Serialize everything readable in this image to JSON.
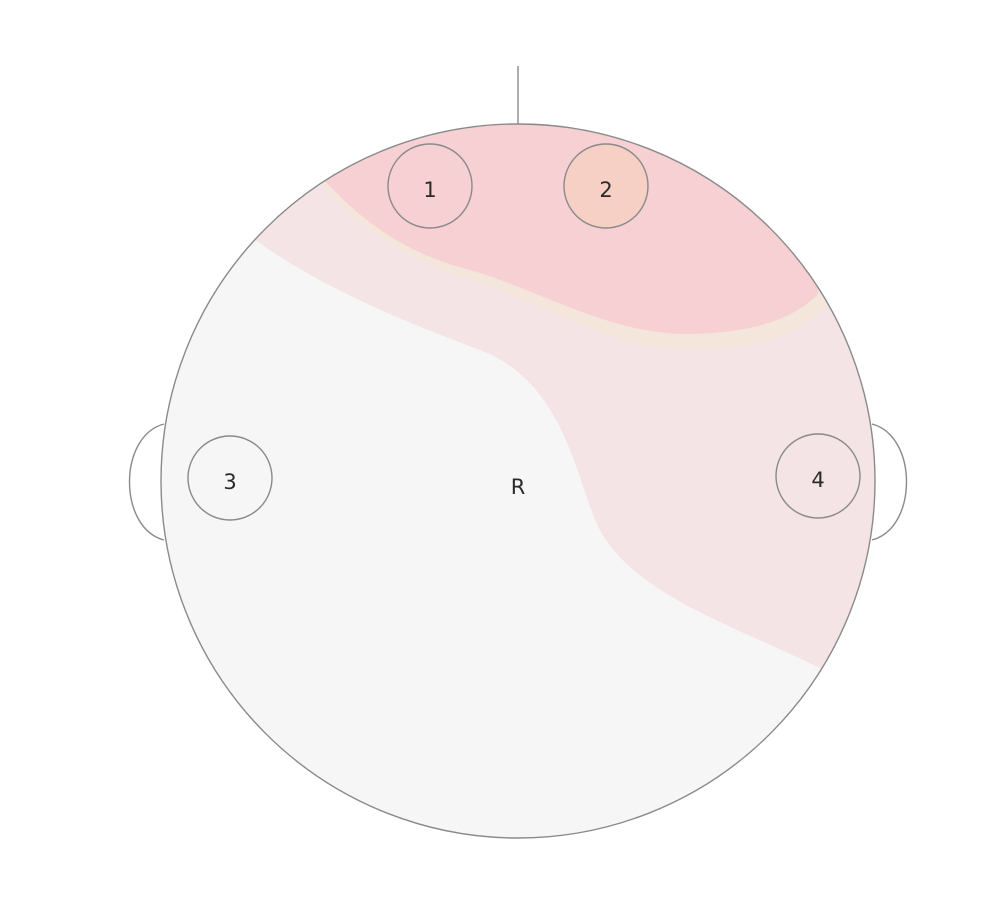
{
  "figure": {
    "reference_label": "R",
    "electrodes": [
      {
        "label": "1",
        "fill": "#f6d0d2"
      },
      {
        "label": "2",
        "fill": "#f6d0c4"
      },
      {
        "label": "3",
        "fill": "#f6f6f6"
      },
      {
        "label": "4",
        "fill": "#f5e4e5"
      }
    ],
    "regions": [
      {
        "name": "background",
        "color": "#f6f6f6"
      },
      {
        "name": "light-pink",
        "color": "#f5e4e5"
      },
      {
        "name": "beige-band",
        "color": "#f5e6dc"
      },
      {
        "name": "pink",
        "color": "#f6d0d2"
      }
    ],
    "outline_color": "#8a8a8a"
  }
}
